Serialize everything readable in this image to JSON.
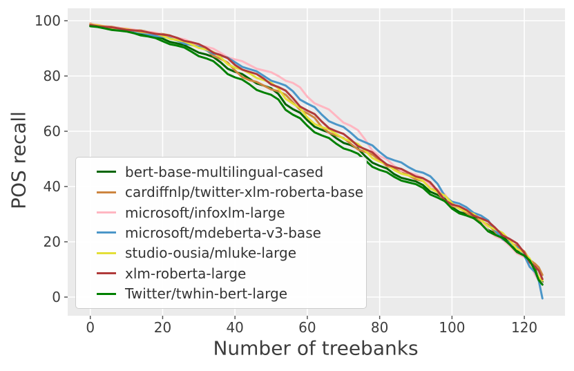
{
  "chart_data": {
    "type": "line",
    "title": "",
    "xlabel": "Number of treebanks",
    "ylabel": "POS recall",
    "xlim": [
      -6.25,
      131.25
    ],
    "ylim": [
      -6.75,
      104.5
    ],
    "x_ticks": [
      0,
      20,
      40,
      60,
      80,
      100,
      120
    ],
    "y_ticks": [
      0,
      20,
      40,
      60,
      80,
      100
    ],
    "grid": true,
    "legend_position": "lower-left",
    "plot_background": "#EBEBEB",
    "grid_color": "#FFFFFF",
    "tick_color": "#555555",
    "text_color": "#3d3d3d",
    "x": [
      0,
      4,
      8,
      12,
      16,
      20,
      24,
      28,
      32,
      36,
      40,
      44,
      48,
      52,
      56,
      60,
      64,
      68,
      72,
      76,
      80,
      84,
      88,
      92,
      96,
      100,
      104,
      108,
      112,
      116,
      120,
      123,
      125
    ],
    "series": [
      {
        "name": "bert-base-multilingual-cased",
        "color": "#006400",
        "values": [
          98.2,
          97.4,
          96.6,
          95.8,
          94.8,
          93.5,
          91.8,
          89.8,
          87.8,
          85.0,
          81.5,
          79.0,
          76.5,
          73.5,
          68.0,
          64.0,
          60.5,
          57.5,
          55.0,
          51.0,
          47.5,
          44.5,
          42.5,
          40.5,
          37.0,
          32.5,
          30.0,
          27.0,
          23.0,
          19.5,
          15.5,
          10.0,
          5.5
        ]
      },
      {
        "name": "cardiffnlp/twitter-xlm-roberta-base",
        "color": "#CD853F",
        "values": [
          99.0,
          98.0,
          97.4,
          96.7,
          96.0,
          95.2,
          93.6,
          91.8,
          89.6,
          86.2,
          82.0,
          78.5,
          76.5,
          74.5,
          70.5,
          66.5,
          61.5,
          58.5,
          55.5,
          52.5,
          49.5,
          46.5,
          44.0,
          42.0,
          38.0,
          33.0,
          30.5,
          27.5,
          23.5,
          19.5,
          16.5,
          12.0,
          8.0
        ]
      },
      {
        "name": "microsoft/infoxlm-large",
        "color": "#FFB6C1",
        "values": [
          98.8,
          98.0,
          97.4,
          96.8,
          96.0,
          95.0,
          93.8,
          92.2,
          90.6,
          88.4,
          86.0,
          84.0,
          82.0,
          80.0,
          77.5,
          72.5,
          69.0,
          65.5,
          62.0,
          57.0,
          51.0,
          47.5,
          45.0,
          43.0,
          39.0,
          33.5,
          31.5,
          28.0,
          22.0,
          18.5,
          14.5,
          8.0,
          5.0
        ]
      },
      {
        "name": "microsoft/mdeberta-v3-base",
        "color": "#4B96C8",
        "values": [
          98.3,
          97.5,
          96.8,
          96.0,
          95.1,
          94.2,
          92.8,
          91.2,
          89.4,
          87.4,
          85.0,
          82.5,
          80.0,
          77.5,
          74.5,
          70.0,
          66.0,
          62.5,
          59.5,
          56.0,
          52.5,
          49.5,
          47.0,
          45.0,
          41.0,
          34.5,
          32.5,
          29.5,
          24.0,
          19.5,
          15.0,
          9.0,
          -0.5
        ]
      },
      {
        "name": "studio-ousia/mluke-large",
        "color": "#E4DF38",
        "values": [
          98.6,
          97.9,
          97.2,
          96.5,
          95.7,
          94.5,
          93.0,
          91.4,
          89.6,
          86.8,
          83.0,
          81.0,
          78.5,
          75.5,
          70.0,
          65.0,
          61.5,
          59.0,
          56.5,
          53.0,
          49.0,
          46.0,
          44.0,
          42.0,
          38.0,
          34.0,
          31.0,
          28.0,
          24.5,
          20.5,
          16.0,
          9.5,
          6.0
        ]
      },
      {
        "name": "xlm-roberta-large",
        "color": "#B03A3A",
        "values": [
          98.5,
          97.8,
          97.2,
          96.5,
          95.8,
          95.0,
          93.8,
          92.2,
          90.2,
          87.6,
          84.0,
          81.5,
          79.0,
          76.0,
          72.0,
          67.5,
          63.5,
          60.0,
          57.0,
          53.5,
          50.0,
          47.0,
          45.0,
          43.0,
          38.5,
          33.5,
          31.5,
          28.5,
          25.0,
          21.0,
          16.0,
          11.0,
          6.5
        ]
      },
      {
        "name": "Twitter/twhin-bert-large",
        "color": "#008000",
        "values": [
          98.0,
          97.2,
          96.4,
          95.5,
          94.3,
          92.6,
          91.0,
          88.8,
          86.4,
          83.2,
          79.5,
          77.0,
          74.0,
          71.5,
          66.0,
          62.0,
          58.5,
          55.5,
          53.0,
          49.5,
          46.0,
          43.5,
          41.5,
          39.5,
          36.0,
          32.0,
          29.5,
          26.5,
          22.5,
          19.0,
          15.0,
          9.5,
          4.5
        ]
      }
    ]
  }
}
